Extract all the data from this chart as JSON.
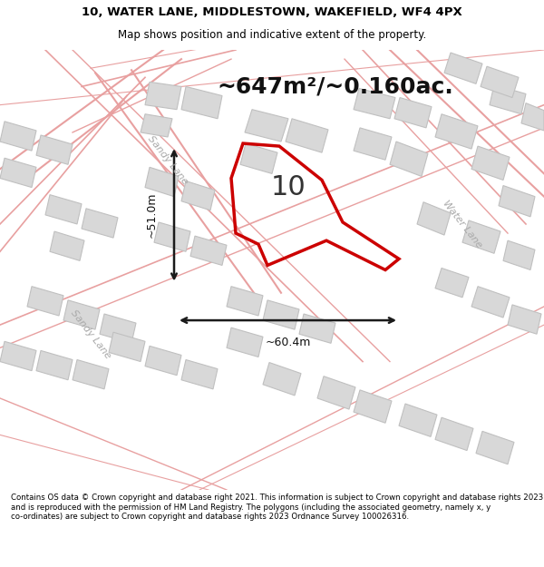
{
  "title_line1": "10, WATER LANE, MIDDLESTOWN, WAKEFIELD, WF4 4PX",
  "title_line2": "Map shows position and indicative extent of the property.",
  "area_text": "~647m²/~0.160ac.",
  "dim_vertical": "~51.0m",
  "dim_horizontal": "~60.4m",
  "label_number": "10",
  "road_label_sandy_upper": "Sandy Lane",
  "road_label_sandy_lower": "Sandy Lane",
  "road_label_water": "Water Lane",
  "footer_text": "Contains OS data © Crown copyright and database right 2021. This information is subject to Crown copyright and database rights 2023 and is reproduced with the permission of HM Land Registry. The polygons (including the associated geometry, namely x, y co-ordinates) are subject to Crown copyright and database rights 2023 Ordnance Survey 100026316.",
  "bg_color": "#f5f5f5",
  "map_bg_color": "#f0f0f0",
  "building_color": "#d8d8d8",
  "building_edge_color": "#c0c0c0",
  "road_line_color": "#e8a0a0",
  "highlight_color": "#cc0000",
  "dim_line_color": "#1a1a1a",
  "road_label_color": "#a0a0a0",
  "title_color": "#000000",
  "footer_color": "#000000"
}
